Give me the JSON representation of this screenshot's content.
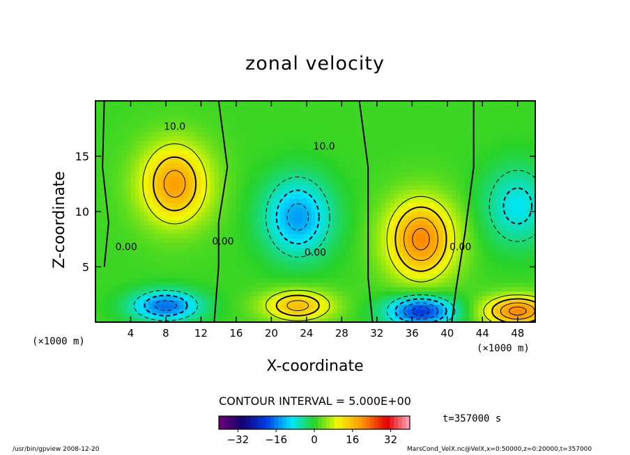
{
  "chart_data": {
    "type": "heatmap",
    "title": "zonal velocity",
    "xlabel": "X-coordinate",
    "ylabel": "Z-coordinate",
    "x_unit_label": "(×1000 m)",
    "xlim": [
      0,
      50
    ],
    "ylim": [
      0,
      20
    ],
    "x_ticks": [
      4,
      8,
      12,
      16,
      20,
      24,
      28,
      32,
      36,
      40,
      44,
      48
    ],
    "y_ticks": [
      5,
      10,
      15
    ],
    "contour_interval_label": "CONTOUR INTERVAL = 5.000E+00",
    "contour_labels": [
      "10.0",
      "10.0",
      "0.00",
      "0.00",
      "0.00",
      "0.00"
    ],
    "colorbar": {
      "range": [
        -40,
        40
      ],
      "ticks": [
        -32,
        -16,
        0,
        16,
        32
      ]
    },
    "time_label": "t=357000 s",
    "features": [
      {
        "x": 9,
        "z": 12.5,
        "value": 18
      },
      {
        "x": 23,
        "z": 9.5,
        "value": -15
      },
      {
        "x": 37,
        "z": 7.5,
        "value": 20
      },
      {
        "x": 48,
        "z": 10.5,
        "value": -10
      },
      {
        "x": 8,
        "z": 1.5,
        "value": -18
      },
      {
        "x": 23,
        "z": 1.5,
        "value": 15
      },
      {
        "x": 37,
        "z": 1,
        "value": -22
      },
      {
        "x": 48,
        "z": 1,
        "value": 20
      }
    ]
  },
  "footer": {
    "left": "/usr/bin/gpview   2008-12-20",
    "right": "MarsCond_VelX.nc@VelX,x=0:50000,z=0:20000,t=357000"
  }
}
